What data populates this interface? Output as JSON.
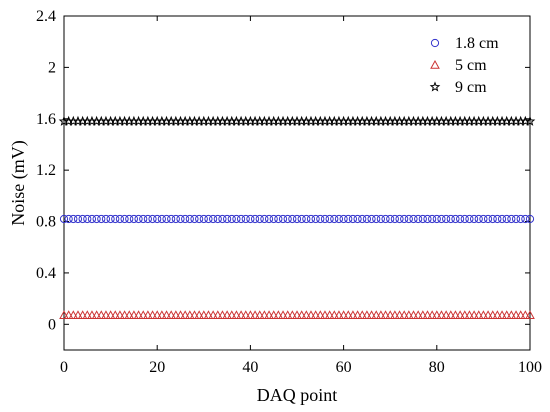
{
  "chart_data": {
    "type": "scatter",
    "xlabel": "DAQ point",
    "ylabel": "Noise (mV)",
    "xlim": [
      0,
      100
    ],
    "ylim": [
      -0.2,
      2.4
    ],
    "xticks": [
      0,
      20,
      40,
      60,
      80,
      100
    ],
    "xtick_labels": [
      "0",
      "20",
      "40",
      "60",
      "80",
      "100"
    ],
    "yticks": [
      0,
      0.4,
      0.8,
      1.2,
      1.6,
      2.0,
      2.4
    ],
    "ytick_labels": [
      "0",
      "0.4",
      "0.8",
      "1.2",
      "1.6",
      "2",
      "2.4"
    ],
    "grid": false,
    "legend_position": "top-right",
    "x": {
      "start": 0,
      "end": 100,
      "step": 1
    },
    "series": [
      {
        "name": "1.8 cm",
        "marker": "circle",
        "color": "#3333cc",
        "value": 0.82
      },
      {
        "name": "5 cm",
        "marker": "triangle",
        "color": "#cc3333",
        "value": 0.07
      },
      {
        "name": "9 cm",
        "marker": "star",
        "color": "#000000",
        "value": 1.58
      }
    ]
  }
}
